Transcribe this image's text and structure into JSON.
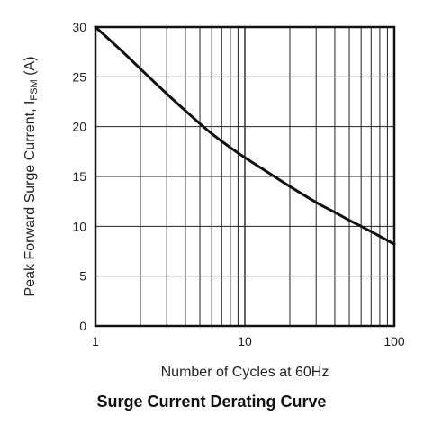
{
  "chart_data": {
    "type": "line",
    "title": "Surge Current Derating Curve",
    "xlabel": "Number of Cycles at 60Hz",
    "ylabel": "Peak Forward Surge Current, I",
    "ylabel_subscript": "FSM",
    "ylabel_unit": " (A)",
    "x_scale": "log",
    "xlim": [
      1,
      100
    ],
    "ylim": [
      0,
      30
    ],
    "grid": true,
    "x_ticks": [
      1,
      10,
      100
    ],
    "x_tick_labels": [
      "1",
      "10",
      "100"
    ],
    "y_ticks": [
      0,
      5,
      10,
      15,
      20,
      25,
      30
    ],
    "y_tick_labels": [
      "0",
      "5",
      "10",
      "15",
      "20",
      "25",
      "30"
    ],
    "series": [
      {
        "x": [
          1,
          1.5,
          2,
          3,
          4,
          5,
          6,
          8,
          10,
          15,
          20,
          30,
          40,
          50,
          60,
          80,
          100
        ],
        "y": [
          30,
          27.6,
          25.8,
          23.3,
          21.6,
          20.3,
          19.3,
          17.9,
          16.9,
          15.2,
          14.0,
          12.4,
          11.4,
          10.6,
          10.0,
          9.0,
          8.2
        ]
      }
    ],
    "line_color": "#111111",
    "grid_color": "#222222"
  }
}
